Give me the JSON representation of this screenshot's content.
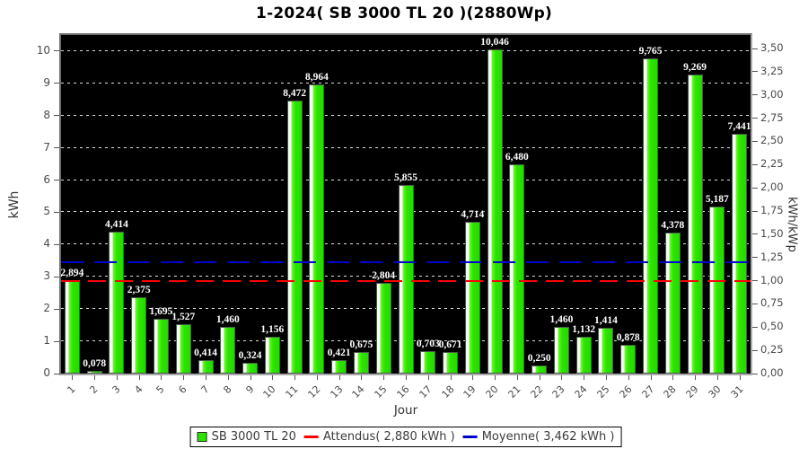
{
  "title": "1-2024( SB 3000 TL 20 )(2880Wp)",
  "axes": {
    "left_label": "kWh",
    "right_label": "kWh/kWp",
    "x_label": "Jour"
  },
  "legend": {
    "series": {
      "label": "SB 3000 TL 20",
      "swatch_color": "#2be400"
    },
    "attendus": {
      "label": "Attendus( 2,880 kWh )",
      "color": "#ff0000"
    },
    "moyenne": {
      "label": "Moyenne( 3,462 kWh )",
      "color": "#0000cc"
    }
  },
  "chart_data": {
    "type": "bar",
    "title": "1-2024( SB 3000 TL 20 )(2880Wp)",
    "xlabel": "Jour",
    "ylabel_left": "kWh",
    "ylabel_right": "kWh/kWp",
    "series_name": "SB 3000 TL 20",
    "bar_color": "#2be400",
    "plot_background": "#000000",
    "grid": "horizontal-dashed-white",
    "legend_position": "bottom",
    "categories": [
      "1",
      "2",
      "3",
      "4",
      "5",
      "6",
      "7",
      "8",
      "9",
      "10",
      "11",
      "12",
      "13",
      "14",
      "15",
      "16",
      "17",
      "18",
      "19",
      "20",
      "21",
      "22",
      "23",
      "24",
      "25",
      "26",
      "27",
      "28",
      "29",
      "30",
      "31"
    ],
    "values": [
      2.894,
      0.078,
      4.414,
      2.375,
      1.695,
      1.527,
      0.414,
      1.46,
      0.324,
      1.156,
      8.472,
      8.964,
      0.421,
      0.675,
      2.804,
      5.855,
      0.703,
      0.671,
      4.714,
      10.046,
      6.48,
      0.25,
      1.46,
      1.132,
      1.414,
      0.878,
      9.765,
      4.378,
      9.269,
      5.187,
      7.441
    ],
    "value_labels": [
      "2,894",
      "0,078",
      "4,414",
      "2,375",
      "1,695",
      "1,527",
      "0,414",
      "1,460",
      "0,324",
      "1,156",
      "8,472",
      "8,964",
      "0,421",
      "0,675",
      "2,804",
      "5,855",
      "0,703",
      "0,671",
      "4,714",
      "10,046",
      "6,480",
      "0,250",
      "1,460",
      "1,132",
      "1,414",
      "0,878",
      "9,765",
      "4,378",
      "9,269",
      "5,187",
      "7,441"
    ],
    "ylim_left": [
      0,
      10.5
    ],
    "yticks_left_values": [
      0,
      1,
      2,
      3,
      4,
      5,
      6,
      7,
      8,
      9,
      10
    ],
    "yticks_left_labels": [
      "0",
      "1",
      "2",
      "3",
      "4",
      "5",
      "6",
      "7",
      "8",
      "9",
      "10"
    ],
    "kwp_factor": 2.88,
    "yticks_right_values": [
      0,
      0.25,
      0.5,
      0.75,
      1,
      1.25,
      1.5,
      1.75,
      2,
      2.25,
      2.5,
      2.75,
      3,
      3.25,
      3.5
    ],
    "yticks_right_labels": [
      "0,00",
      "0,25",
      "0,50",
      "0,75",
      "1,00",
      "1,25",
      "1,50",
      "1,75",
      "2,00",
      "2,25",
      "2,50",
      "2,75",
      "3,00",
      "3,25",
      "3,50"
    ],
    "reference_lines": [
      {
        "name": "attendus",
        "value": 2.88,
        "color": "#ff0000",
        "label": "Attendus( 2,880 kWh )"
      },
      {
        "name": "moyenne",
        "value": 3.462,
        "color": "#0000cc",
        "label": "Moyenne( 3,462 kWh )"
      }
    ]
  }
}
